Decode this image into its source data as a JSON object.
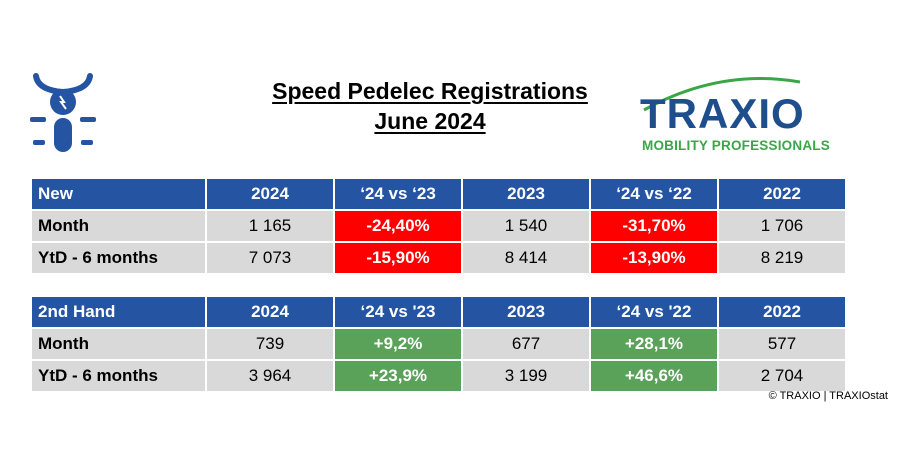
{
  "title": {
    "line1": "Speed Pedelec Registrations",
    "line2": "June 2024"
  },
  "icons": {
    "bike": "speed-pedelec-rider-icon"
  },
  "logo": {
    "word": "TRAXIO",
    "tagline": "MOBILITY PROFESSIONALS",
    "colors": {
      "blue": "#1f4e8c",
      "green": "#3aa648"
    }
  },
  "colors": {
    "header": "#2454a2",
    "cell": "#d9d9d9",
    "negative": "#ff0000",
    "positive": "#5aa15a"
  },
  "tables": [
    {
      "headers": [
        "New",
        "2024",
        "‘24 vs ‘23",
        "2023",
        "‘24 vs ‘22",
        "2022"
      ],
      "rows": [
        {
          "label": "Month",
          "v2024": "1 165",
          "d23": "-24,40%",
          "v2023": "1 540",
          "d22": "-31,70%",
          "v2022": "1 706"
        },
        {
          "label": "YtD - 6 months",
          "v2024": "7 073",
          "d23": "-15,90%",
          "v2023": "8 414",
          "d22": "-13,90%",
          "v2022": "8 219"
        }
      ]
    },
    {
      "headers": [
        "2nd Hand",
        "2024",
        "‘24 vs '23",
        "2023",
        "‘24 vs '22",
        "2022"
      ],
      "rows": [
        {
          "label": "Month",
          "v2024": "739",
          "d23": "+9,2%",
          "v2023": "677",
          "d22": "+28,1%",
          "v2022": "577"
        },
        {
          "label": "YtD - 6 months",
          "v2024": "3 964",
          "d23": "+23,9%",
          "v2023": "3 199",
          "d22": "+46,6%",
          "v2022": "2 704"
        }
      ]
    }
  ],
  "copyright": "© TRAXIO | TRAXIOstat"
}
